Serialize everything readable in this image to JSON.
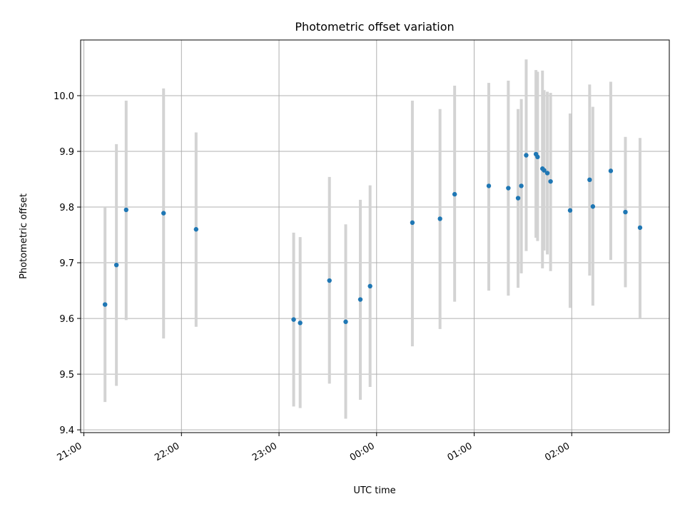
{
  "chart_data": {
    "type": "scatter",
    "title": "Photometric offset variation",
    "xlabel": "UTC time",
    "ylabel": "Photometric offset",
    "x_ticks": [
      "21:00",
      "22:00",
      "23:00",
      "00:00",
      "01:00",
      "02:00"
    ],
    "y_ticks": [
      "9.4",
      "9.5",
      "9.6",
      "9.7",
      "9.8",
      "9.9",
      "10.0"
    ],
    "xlim": [
      "20:58",
      "03:00"
    ],
    "ylim": [
      9.395,
      10.1
    ],
    "grid": true,
    "colors": {
      "points": "#1f77b4",
      "error_bars": "#d3d3d3",
      "grid": "#b0b0b0"
    },
    "points": [
      {
        "t": "21:13",
        "y": 9.625,
        "lo": 9.45,
        "hi": 9.8
      },
      {
        "t": "21:20",
        "y": 9.696,
        "lo": 9.479,
        "hi": 9.913
      },
      {
        "t": "21:26",
        "y": 9.795,
        "lo": 9.597,
        "hi": 9.991
      },
      {
        "t": "21:49",
        "y": 9.789,
        "lo": 9.564,
        "hi": 10.013
      },
      {
        "t": "22:09",
        "y": 9.76,
        "lo": 9.585,
        "hi": 9.934
      },
      {
        "t": "23:09",
        "y": 9.598,
        "lo": 9.442,
        "hi": 9.754
      },
      {
        "t": "23:13",
        "y": 9.592,
        "lo": 9.439,
        "hi": 9.746
      },
      {
        "t": "23:31",
        "y": 9.668,
        "lo": 9.483,
        "hi": 9.854
      },
      {
        "t": "23:41",
        "y": 9.594,
        "lo": 9.42,
        "hi": 9.769
      },
      {
        "t": "23:50",
        "y": 9.634,
        "lo": 9.454,
        "hi": 9.813
      },
      {
        "t": "23:56",
        "y": 9.658,
        "lo": 9.477,
        "hi": 9.839
      },
      {
        "t": "00:22",
        "y": 9.772,
        "lo": 9.55,
        "hi": 9.991
      },
      {
        "t": "00:39",
        "y": 9.779,
        "lo": 9.581,
        "hi": 9.976
      },
      {
        "t": "00:48",
        "y": 9.823,
        "lo": 9.63,
        "hi": 10.018
      },
      {
        "t": "01:09",
        "y": 9.838,
        "lo": 9.65,
        "hi": 10.023
      },
      {
        "t": "01:21",
        "y": 9.834,
        "lo": 9.641,
        "hi": 10.027
      },
      {
        "t": "01:27",
        "y": 9.816,
        "lo": 9.655,
        "hi": 9.976
      },
      {
        "t": "01:29",
        "y": 9.838,
        "lo": 9.681,
        "hi": 9.994
      },
      {
        "t": "01:32",
        "y": 9.893,
        "lo": 9.721,
        "hi": 10.065
      },
      {
        "t": "01:38",
        "y": 9.895,
        "lo": 9.745,
        "hi": 10.046
      },
      {
        "t": "01:39",
        "y": 9.89,
        "lo": 9.739,
        "hi": 10.043
      },
      {
        "t": "01:42",
        "y": 9.869,
        "lo": 9.69,
        "hi": 10.045
      },
      {
        "t": "01:43",
        "y": 9.866,
        "lo": 9.722,
        "hi": 10.01
      },
      {
        "t": "01:45",
        "y": 9.861,
        "lo": 9.715,
        "hi": 10.007
      },
      {
        "t": "01:47",
        "y": 9.846,
        "lo": 9.685,
        "hi": 10.005
      },
      {
        "t": "01:59",
        "y": 9.794,
        "lo": 9.619,
        "hi": 9.968
      },
      {
        "t": "02:11",
        "y": 9.849,
        "lo": 9.677,
        "hi": 10.02
      },
      {
        "t": "02:13",
        "y": 9.801,
        "lo": 9.623,
        "hi": 9.98
      },
      {
        "t": "02:24",
        "y": 9.865,
        "lo": 9.705,
        "hi": 10.025
      },
      {
        "t": "02:33",
        "y": 9.791,
        "lo": 9.656,
        "hi": 9.926
      },
      {
        "t": "02:42",
        "y": 9.763,
        "lo": 9.601,
        "hi": 9.924
      }
    ]
  }
}
